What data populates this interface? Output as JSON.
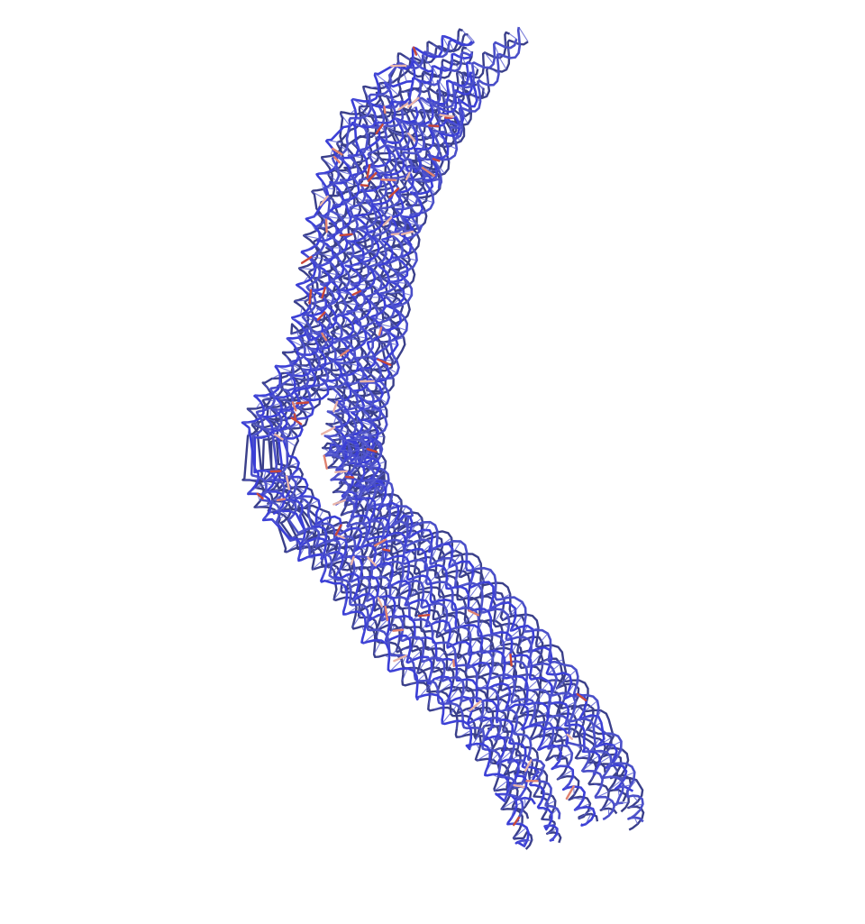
{
  "scene": {
    "background": "#ffffff",
    "subject": "molecular-structure-render",
    "colors": {
      "backbone_primary": "#3b3fd6",
      "backbone_secondary": "#4a4fc8",
      "backbone_dark": "#3a3f8a",
      "rung": "#5a5fd0",
      "highlight_red": "#c9483a",
      "highlight_salmon": "#e0826f",
      "highlight_pink": "#e8b4a8"
    }
  }
}
